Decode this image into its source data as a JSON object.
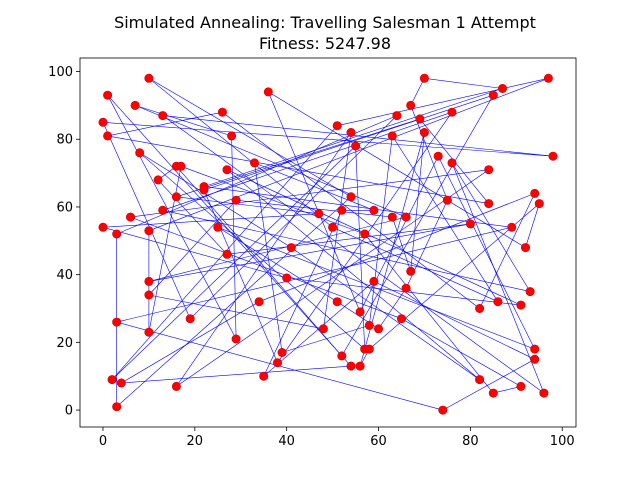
{
  "chart_data": {
    "type": "scatter",
    "title": "Simulated Annealing: Travelling Salesman 1 Attempt",
    "subtitle": "Fitness: 5247.98",
    "xlabel": "",
    "ylabel": "",
    "xlim": [
      -5,
      103
    ],
    "ylim": [
      -5,
      104
    ],
    "xticks": [
      0,
      20,
      40,
      60,
      80,
      100
    ],
    "yticks": [
      0,
      20,
      40,
      60,
      80,
      100
    ],
    "grid": false,
    "legend": "none",
    "marker_color": "#ff0000",
    "line_color": "#0000ff",
    "cities": [
      [
        10,
        98
      ],
      [
        1,
        93
      ],
      [
        7,
        90
      ],
      [
        13,
        87
      ],
      [
        0,
        85
      ],
      [
        1,
        81
      ],
      [
        8,
        76
      ],
      [
        16,
        72
      ],
      [
        17,
        72
      ],
      [
        12,
        68
      ],
      [
        22,
        66
      ],
      [
        22,
        65
      ],
      [
        16,
        63
      ],
      [
        13,
        59
      ],
      [
        6,
        57
      ],
      [
        0,
        54
      ],
      [
        3,
        52
      ],
      [
        10,
        53
      ],
      [
        25,
        54
      ],
      [
        29,
        62
      ],
      [
        27,
        71
      ],
      [
        33,
        73
      ],
      [
        28,
        81
      ],
      [
        26,
        88
      ],
      [
        36,
        94
      ],
      [
        51,
        84
      ],
      [
        54,
        82
      ],
      [
        55,
        78
      ],
      [
        63,
        81
      ],
      [
        64,
        87
      ],
      [
        67,
        90
      ],
      [
        69,
        86
      ],
      [
        70,
        82
      ],
      [
        70,
        98
      ],
      [
        73,
        75
      ],
      [
        76,
        73
      ],
      [
        76,
        88
      ],
      [
        85,
        93
      ],
      [
        87,
        95
      ],
      [
        97,
        98
      ],
      [
        98,
        75
      ],
      [
        84,
        71
      ],
      [
        94,
        64
      ],
      [
        95,
        61
      ],
      [
        84,
        61
      ],
      [
        75,
        62
      ],
      [
        80,
        55
      ],
      [
        89,
        54
      ],
      [
        92,
        48
      ],
      [
        93,
        35
      ],
      [
        91,
        31
      ],
      [
        86,
        32
      ],
      [
        82,
        30
      ],
      [
        94,
        18
      ],
      [
        94,
        15
      ],
      [
        91,
        7
      ],
      [
        96,
        5
      ],
      [
        85,
        5
      ],
      [
        82,
        9
      ],
      [
        74,
        0
      ],
      [
        67,
        41
      ],
      [
        66,
        36
      ],
      [
        65,
        27
      ],
      [
        60,
        24
      ],
      [
        58,
        25
      ],
      [
        56,
        29
      ],
      [
        59,
        38
      ],
      [
        57,
        52
      ],
      [
        50,
        54
      ],
      [
        47,
        58
      ],
      [
        52,
        59
      ],
      [
        54,
        63
      ],
      [
        59,
        59
      ],
      [
        63,
        57
      ],
      [
        66,
        57
      ],
      [
        41,
        48
      ],
      [
        40,
        39
      ],
      [
        39,
        17
      ],
      [
        38,
        14
      ],
      [
        35,
        10
      ],
      [
        34,
        32
      ],
      [
        48,
        24
      ],
      [
        51,
        32
      ],
      [
        52,
        16
      ],
      [
        54,
        13
      ],
      [
        56,
        13
      ],
      [
        57,
        18
      ],
      [
        58,
        18
      ],
      [
        29,
        21
      ],
      [
        27,
        46
      ],
      [
        19,
        27
      ],
      [
        16,
        7
      ],
      [
        10,
        38
      ],
      [
        10,
        34
      ],
      [
        10,
        23
      ],
      [
        3,
        26
      ],
      [
        2,
        9
      ],
      [
        4,
        8
      ],
      [
        3,
        1
      ]
    ],
    "route": [
      0,
      71,
      98,
      16,
      29,
      90,
      4,
      40,
      3,
      56,
      35,
      49,
      13,
      36,
      78,
      11,
      37,
      83,
      7,
      9,
      89,
      46,
      92,
      74,
      2,
      22,
      88,
      1,
      84,
      97,
      80,
      42,
      52,
      23,
      5,
      44,
      31,
      12,
      69,
      15,
      76,
      50,
      20,
      58,
      75,
      6,
      86,
      27,
      96,
      25,
      39,
      17,
      94,
      8,
      67,
      57,
      55,
      62,
      14,
      41,
      91,
      26,
      81,
      93,
      19,
      73,
      60,
      32,
      85,
      87,
      43,
      48,
      24,
      65,
      34,
      53,
      18,
      82,
      63,
      61,
      45,
      30,
      33,
      38,
      10,
      47,
      95,
      59,
      54,
      66,
      79,
      70,
      72,
      21,
      77,
      64,
      28,
      51,
      68,
      0
    ]
  }
}
